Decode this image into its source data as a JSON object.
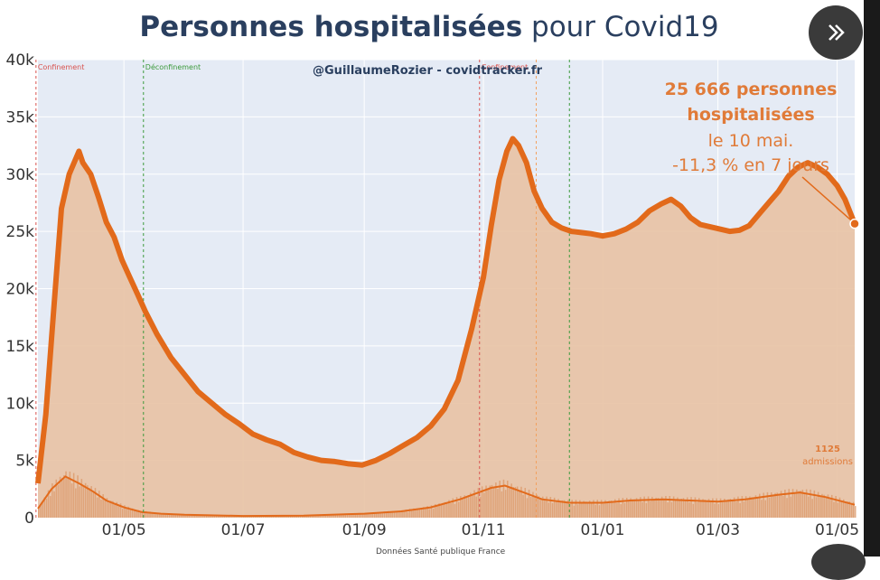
{
  "title": {
    "bold": "Personnes hospitalisées",
    "light": " pour Covid19"
  },
  "credit": "@GuillaumeRozier - covidtracker.fr",
  "source": "Données Santé publique France",
  "annotation": {
    "value_line1": "25 666 personnes",
    "value_line2": "hospitalisées",
    "date_line": "le 10 mai.",
    "change_line": "-11,3 % en 7 jours"
  },
  "admissions_annotation": {
    "value": "1125",
    "label": "admissions"
  },
  "nav": {
    "next_icon": "double-chevron-right-icon"
  },
  "colors": {
    "hosp_line": "#e26a1b",
    "hosp_fill": "#e8c2a4",
    "admissions_bar": "#dc9a6b",
    "plot_bg": "#e5ebf5",
    "confinement_line": "#d9534f",
    "deconfinement_line": "#3c9a3c",
    "annotation_text": "#e07b39"
  },
  "chart_data": {
    "type": "area",
    "title": "Personnes hospitalisées pour Covid19",
    "x_start": "2020-03-18",
    "x_end": "2021-05-10",
    "ylim": [
      0,
      40000
    ],
    "y_ticks": [
      {
        "value": 0,
        "label": "0"
      },
      {
        "value": 5000,
        "label": "5k"
      },
      {
        "value": 10000,
        "label": "10k"
      },
      {
        "value": 15000,
        "label": "15k"
      },
      {
        "value": 20000,
        "label": "20k"
      },
      {
        "value": 25000,
        "label": "25k"
      },
      {
        "value": 30000,
        "label": "30k"
      },
      {
        "value": 35000,
        "label": "35k"
      },
      {
        "value": 40000,
        "label": "40k"
      }
    ],
    "x_ticks": [
      {
        "date": "2020-05-01",
        "label": "01/05"
      },
      {
        "date": "2020-07-01",
        "label": "01/07"
      },
      {
        "date": "2020-09-01",
        "label": "01/09"
      },
      {
        "date": "2020-11-01",
        "label": "01/11"
      },
      {
        "date": "2021-01-01",
        "label": "01/01"
      },
      {
        "date": "2021-03-01",
        "label": "01/03"
      },
      {
        "date": "2021-05-01",
        "label": "01/05"
      }
    ],
    "grid": true,
    "events": [
      {
        "date": "2020-03-17",
        "label": "Confinement",
        "kind": "confinement"
      },
      {
        "date": "2020-05-11",
        "label": "Déconfinement",
        "kind": "deconfinement"
      },
      {
        "date": "2020-10-30",
        "label": "Confinement",
        "kind": "confinement"
      },
      {
        "date": "2020-11-28",
        "label": "",
        "kind": "allegement"
      },
      {
        "date": "2020-12-15",
        "label": "",
        "kind": "deconfinement"
      }
    ],
    "series": [
      {
        "name": "Personnes hospitalisées",
        "kind": "area",
        "points": [
          [
            "2020-03-18",
            3000
          ],
          [
            "2020-03-22",
            9000
          ],
          [
            "2020-03-26",
            18000
          ],
          [
            "2020-03-30",
            27000
          ],
          [
            "2020-04-03",
            30000
          ],
          [
            "2020-04-06",
            31200
          ],
          [
            "2020-04-08",
            32000
          ],
          [
            "2020-04-10",
            31000
          ],
          [
            "2020-04-14",
            30000
          ],
          [
            "2020-04-18",
            28000
          ],
          [
            "2020-04-22",
            25800
          ],
          [
            "2020-04-26",
            24500
          ],
          [
            "2020-04-30",
            22500
          ],
          [
            "2020-05-04",
            21000
          ],
          [
            "2020-05-08",
            19500
          ],
          [
            "2020-05-12",
            18000
          ],
          [
            "2020-05-18",
            16000
          ],
          [
            "2020-05-25",
            14000
          ],
          [
            "2020-06-01",
            12500
          ],
          [
            "2020-06-08",
            11000
          ],
          [
            "2020-06-15",
            10000
          ],
          [
            "2020-06-22",
            9000
          ],
          [
            "2020-06-29",
            8200
          ],
          [
            "2020-07-06",
            7300
          ],
          [
            "2020-07-13",
            6800
          ],
          [
            "2020-07-20",
            6400
          ],
          [
            "2020-07-27",
            5700
          ],
          [
            "2020-08-03",
            5300
          ],
          [
            "2020-08-10",
            5000
          ],
          [
            "2020-08-17",
            4900
          ],
          [
            "2020-08-24",
            4700
          ],
          [
            "2020-08-31",
            4600
          ],
          [
            "2020-09-07",
            5000
          ],
          [
            "2020-09-14",
            5600
          ],
          [
            "2020-09-21",
            6300
          ],
          [
            "2020-09-28",
            7000
          ],
          [
            "2020-10-05",
            8000
          ],
          [
            "2020-10-12",
            9500
          ],
          [
            "2020-10-19",
            12000
          ],
          [
            "2020-10-26",
            16500
          ],
          [
            "2020-11-01",
            21000
          ],
          [
            "2020-11-05",
            25500
          ],
          [
            "2020-11-09",
            29500
          ],
          [
            "2020-11-13",
            32000
          ],
          [
            "2020-11-16",
            33100
          ],
          [
            "2020-11-19",
            32500
          ],
          [
            "2020-11-23",
            31000
          ],
          [
            "2020-11-27",
            28500
          ],
          [
            "2020-12-01",
            27000
          ],
          [
            "2020-12-06",
            25800
          ],
          [
            "2020-12-11",
            25300
          ],
          [
            "2020-12-16",
            25000
          ],
          [
            "2020-12-21",
            24900
          ],
          [
            "2020-12-26",
            24800
          ],
          [
            "2021-01-01",
            24600
          ],
          [
            "2021-01-07",
            24800
          ],
          [
            "2021-01-13",
            25200
          ],
          [
            "2021-01-19",
            25800
          ],
          [
            "2021-01-25",
            26800
          ],
          [
            "2021-01-31",
            27400
          ],
          [
            "2021-02-05",
            27800
          ],
          [
            "2021-02-10",
            27200
          ],
          [
            "2021-02-15",
            26200
          ],
          [
            "2021-02-20",
            25600
          ],
          [
            "2021-02-25",
            25400
          ],
          [
            "2021-03-02",
            25200
          ],
          [
            "2021-03-07",
            25000
          ],
          [
            "2021-03-12",
            25100
          ],
          [
            "2021-03-17",
            25500
          ],
          [
            "2021-03-22",
            26500
          ],
          [
            "2021-03-27",
            27500
          ],
          [
            "2021-04-01",
            28500
          ],
          [
            "2021-04-06",
            29800
          ],
          [
            "2021-04-11",
            30600
          ],
          [
            "2021-04-16",
            31000
          ],
          [
            "2021-04-21",
            30600
          ],
          [
            "2021-04-26",
            30000
          ],
          [
            "2021-05-01",
            29000
          ],
          [
            "2021-05-05",
            27800
          ],
          [
            "2021-05-10",
            25666
          ]
        ]
      },
      {
        "name": "admissions",
        "kind": "line_with_bars",
        "points": [
          [
            "2020-03-18",
            800
          ],
          [
            "2020-03-25",
            2500
          ],
          [
            "2020-04-01",
            3600
          ],
          [
            "2020-04-08",
            3000
          ],
          [
            "2020-04-15",
            2300
          ],
          [
            "2020-04-22",
            1500
          ],
          [
            "2020-05-01",
            900
          ],
          [
            "2020-05-10",
            500
          ],
          [
            "2020-05-20",
            350
          ],
          [
            "2020-06-01",
            250
          ],
          [
            "2020-07-01",
            150
          ],
          [
            "2020-08-01",
            180
          ],
          [
            "2020-09-01",
            350
          ],
          [
            "2020-09-20",
            550
          ],
          [
            "2020-10-05",
            900
          ],
          [
            "2020-10-20",
            1600
          ],
          [
            "2020-11-05",
            2600
          ],
          [
            "2020-11-12",
            2800
          ],
          [
            "2020-11-20",
            2300
          ],
          [
            "2020-12-01",
            1600
          ],
          [
            "2020-12-15",
            1300
          ],
          [
            "2021-01-01",
            1300
          ],
          [
            "2021-01-15",
            1500
          ],
          [
            "2021-02-01",
            1600
          ],
          [
            "2021-02-15",
            1500
          ],
          [
            "2021-03-01",
            1400
          ],
          [
            "2021-03-15",
            1600
          ],
          [
            "2021-04-01",
            2000
          ],
          [
            "2021-04-12",
            2200
          ],
          [
            "2021-04-25",
            1800
          ],
          [
            "2021-05-10",
            1125
          ]
        ]
      }
    ]
  }
}
